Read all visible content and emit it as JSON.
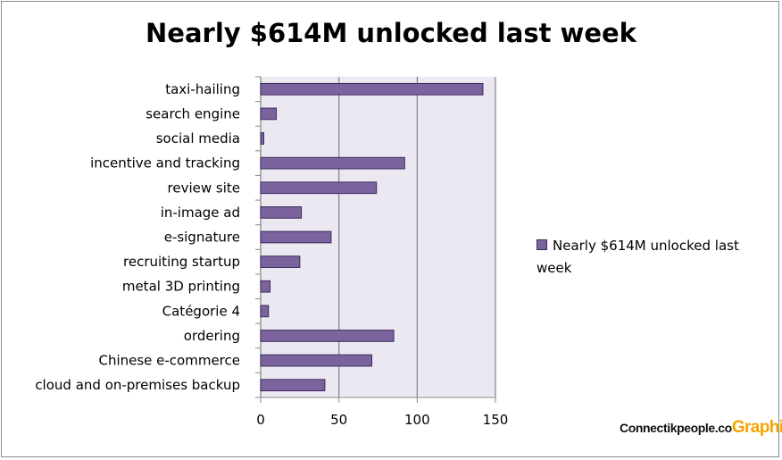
{
  "watermark": {
    "text": "Connectikpeople.co",
    "accent": "Graphics"
  },
  "colors": {
    "bar_fill": "#7b649e",
    "bar_stroke": "#3a2a5c",
    "plot_bg": "#ece8f1",
    "grid": "#8a8a8a",
    "watermark_accent": "#f5a300"
  },
  "chart_data": {
    "type": "bar",
    "orientation": "horizontal",
    "title": "Nearly $614M unlocked last week",
    "xlabel": "",
    "ylabel": "",
    "xlim": [
      0,
      150
    ],
    "ticks": [
      0,
      50,
      100,
      150
    ],
    "grid": true,
    "legend_position": "right",
    "categories": [
      "taxi-hailing",
      "search engine",
      "social media",
      "incentive and tracking",
      "review site",
      "in-image ad",
      "e-signature",
      "recruiting startup",
      "metal 3D printing",
      "Catégorie 4",
      "ordering",
      "Chinese e-commerce",
      "cloud and on-premises backup"
    ],
    "series": [
      {
        "name": "Nearly $614M unlocked last week",
        "values": [
          142,
          10,
          2,
          92,
          74,
          26,
          45,
          25,
          6,
          5,
          85,
          71,
          41
        ]
      }
    ]
  }
}
